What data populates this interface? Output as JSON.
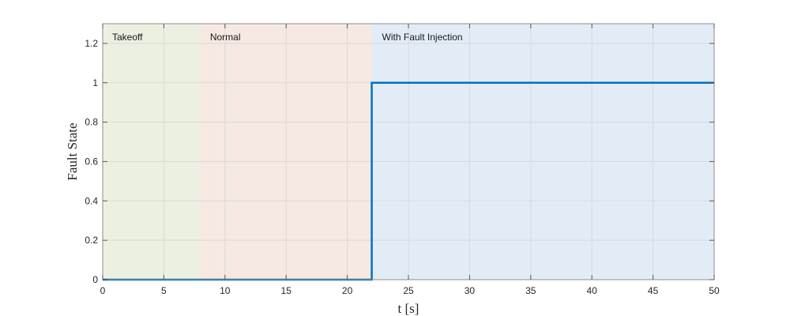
{
  "chart_data": {
    "type": "line",
    "xlabel": "t [s]",
    "ylabel": "Fault State",
    "xlim": [
      0,
      50
    ],
    "ylim": [
      0,
      1.3
    ],
    "x_ticks": [
      0,
      5,
      10,
      15,
      20,
      25,
      30,
      35,
      40,
      45,
      50
    ],
    "y_ticks": [
      0,
      0.2,
      0.4,
      0.6,
      0.8,
      1,
      1.2
    ],
    "x_tick_labels": [
      "0",
      "5",
      "10",
      "15",
      "20",
      "25",
      "30",
      "35",
      "40",
      "45",
      "50"
    ],
    "y_tick_labels": [
      "0",
      "0.2",
      "0.4",
      "0.6",
      "0.8",
      "1",
      "1.2"
    ],
    "grid": true,
    "regions": [
      {
        "label": "Takeoff",
        "x_start": 0,
        "x_end": 8,
        "color": "#ecf0e0"
      },
      {
        "label": "Normal",
        "x_start": 8,
        "x_end": 22,
        "color": "#f5e9e2"
      },
      {
        "label": "With Fault Injection",
        "x_start": 22,
        "x_end": 50,
        "color": "#e2ecf7"
      }
    ],
    "series": [
      {
        "color": "#0072bd",
        "x": [
          0,
          22,
          22,
          50
        ],
        "y": [
          0,
          0,
          1,
          1
        ]
      }
    ]
  }
}
